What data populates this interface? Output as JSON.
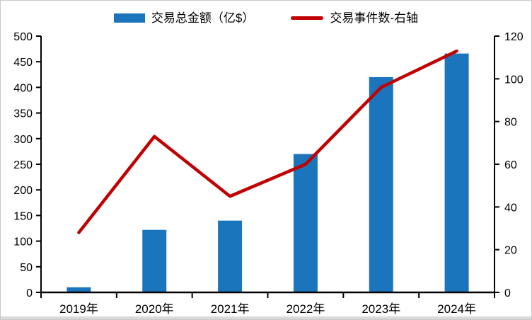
{
  "legend": [
    {
      "label": "交易总金额（亿$）",
      "swatch": "bar",
      "color": "#1B75BC"
    },
    {
      "label": "交易事件数-右轴",
      "swatch": "line",
      "color": "#C00000"
    }
  ],
  "chart_data": {
    "type": "combo",
    "categories": [
      "2019年",
      "2020年",
      "2021年",
      "2022年",
      "2023年",
      "2024年"
    ],
    "series": [
      {
        "name": "交易总金额（亿$）",
        "type": "bar",
        "axis": "left",
        "color": "#1B75BC",
        "values": [
          10,
          122,
          140,
          270,
          420,
          466
        ]
      },
      {
        "name": "交易事件数-右轴",
        "type": "line",
        "axis": "right",
        "color": "#C00000",
        "values": [
          28,
          73,
          45,
          60,
          96,
          113
        ]
      }
    ],
    "left_axis": {
      "min": 0,
      "max": 500,
      "step": 50,
      "tick_labels": [
        0,
        50,
        100,
        150,
        200,
        250,
        300,
        350,
        400,
        450,
        500
      ]
    },
    "right_axis": {
      "min": 0,
      "max": 120,
      "step": 20,
      "tick_labels": [
        0,
        20,
        40,
        60,
        80,
        100,
        120
      ]
    },
    "grid": false,
    "legend_position": "top",
    "title": ""
  }
}
